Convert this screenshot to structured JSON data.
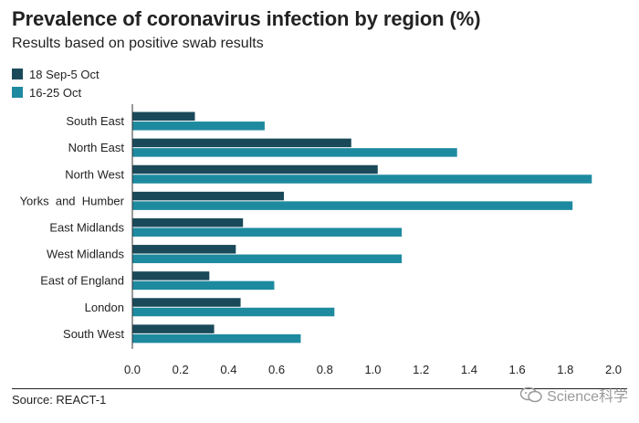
{
  "chart_data": {
    "type": "bar",
    "orientation": "horizontal",
    "title": "Prevalence of coronavirus infection by region (%)",
    "subtitle": "Results based on positive swab results",
    "categories": [
      "South East",
      "North East",
      "North West",
      "Yorks  and  Humber",
      "East Midlands",
      "West Midlands",
      "East of England",
      "London",
      "South West"
    ],
    "series": [
      {
        "name": "18 Sep-5 Oct",
        "color": "#1a4a5a",
        "values": [
          0.26,
          0.91,
          1.02,
          0.63,
          0.46,
          0.43,
          0.32,
          0.45,
          0.34
        ]
      },
      {
        "name": "16-25 Oct",
        "color": "#1e8aa0",
        "values": [
          0.55,
          1.35,
          1.91,
          1.83,
          1.12,
          1.12,
          0.59,
          0.84,
          0.7
        ]
      }
    ],
    "xlim": [
      0,
      2.0
    ],
    "xticks": [
      "0.0",
      "0.2",
      "0.4",
      "0.6",
      "0.8",
      "1.0",
      "1.2",
      "1.4",
      "1.6",
      "1.8",
      "2.0"
    ],
    "xlabel": "",
    "ylabel": "",
    "gridlines": false,
    "legend_position": "top-left"
  },
  "footer": {
    "source": "Source: REACT-1",
    "watermark": "Science科学"
  }
}
